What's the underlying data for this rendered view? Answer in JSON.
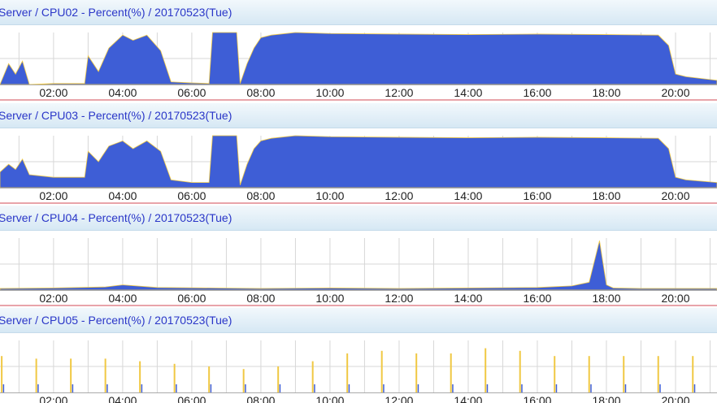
{
  "colors": {
    "cpu": "#3e5ed6",
    "cpu_edge": "#f0c843",
    "grid": "#d7d7d7",
    "baseline": "#d24a55",
    "title_text": "#2a36c8"
  },
  "x_tick_labels": [
    "02:00",
    "04:00",
    "06:00",
    "08:00",
    "10:00",
    "12:00",
    "14:00",
    "16:00",
    "18:00",
    "20:00"
  ],
  "chart_data": [
    {
      "type": "area",
      "title": "Server / CPU02 - Percent(%) / 20170523(Tue)",
      "xlabel": "",
      "ylabel": "",
      "x_unit": "hour of day",
      "xlim": [
        0.45,
        21.2
      ],
      "ylim": [
        0,
        100
      ],
      "grid": true,
      "series": [
        {
          "x": [
            0.45,
            0.7,
            0.9,
            1.1,
            1.3,
            2.0,
            2.9,
            3.0,
            3.3,
            3.6,
            4.0,
            4.3,
            4.7,
            5.1,
            5.4,
            6.0,
            6.5,
            6.6,
            7.3,
            7.4,
            7.6,
            7.8,
            8.0,
            8.3,
            9.0,
            10.0,
            12.0,
            14.0,
            16.0,
            18.0,
            19.5,
            19.8,
            20.0,
            20.3,
            21.2
          ],
          "y": [
            0,
            40,
            20,
            45,
            0,
            2,
            2,
            55,
            25,
            70,
            95,
            85,
            95,
            65,
            5,
            3,
            2,
            100,
            100,
            2,
            40,
            70,
            90,
            95,
            100,
            98,
            97,
            96,
            97,
            96,
            95,
            75,
            20,
            15,
            8
          ]
        }
      ]
    },
    {
      "type": "area",
      "title": "Server / CPU03 - Percent(%) / 20170523(Tue)",
      "xlabel": "",
      "ylabel": "",
      "x_unit": "hour of day",
      "xlim": [
        0.45,
        21.2
      ],
      "ylim": [
        0,
        100
      ],
      "grid": true,
      "series": [
        {
          "x": [
            0.45,
            0.7,
            0.9,
            1.1,
            1.3,
            2.0,
            2.9,
            3.0,
            3.3,
            3.6,
            4.0,
            4.3,
            4.7,
            5.1,
            5.4,
            6.0,
            6.5,
            6.6,
            7.3,
            7.4,
            7.6,
            7.8,
            8.0,
            8.3,
            9.0,
            10.0,
            12.0,
            14.0,
            16.0,
            18.0,
            19.5,
            19.8,
            20.0,
            20.3,
            21.2
          ],
          "y": [
            30,
            45,
            35,
            55,
            25,
            20,
            20,
            70,
            50,
            80,
            90,
            75,
            90,
            70,
            15,
            10,
            10,
            100,
            100,
            5,
            45,
            75,
            90,
            95,
            100,
            98,
            97,
            96,
            97,
            96,
            95,
            75,
            20,
            15,
            10
          ]
        }
      ]
    },
    {
      "type": "area",
      "title": "Server / CPU04 - Percent(%) / 20170523(Tue)",
      "xlabel": "",
      "ylabel": "",
      "x_unit": "hour of day",
      "xlim": [
        0.45,
        21.2
      ],
      "ylim": [
        0,
        100
      ],
      "grid": true,
      "series": [
        {
          "x": [
            0.45,
            2.0,
            3.5,
            4.0,
            5.0,
            8.0,
            10.0,
            12.0,
            14.0,
            16.0,
            17.0,
            17.5,
            17.8,
            18.0,
            18.2,
            19.0,
            21.2
          ],
          "y": [
            3,
            4,
            6,
            10,
            5,
            3,
            4,
            3,
            4,
            5,
            8,
            15,
            95,
            10,
            4,
            3,
            3
          ]
        }
      ]
    },
    {
      "type": "bar",
      "title": "Server / CPU05 - Percent(%) / 20170523(Tue)",
      "xlabel": "",
      "ylabel": "",
      "x_unit": "hour of day",
      "xlim": [
        0.45,
        21.2
      ],
      "ylim": [
        0,
        100
      ],
      "grid": true,
      "series": [
        {
          "x": [
            0.5,
            1.5,
            2.5,
            3.5,
            4.5,
            5.5,
            6.5,
            7.5,
            8.5,
            9.5,
            10.5,
            11.5,
            12.5,
            13.5,
            14.5,
            15.5,
            16.5,
            17.5,
            18.5,
            19.5,
            20.5
          ],
          "y": [
            70,
            65,
            65,
            65,
            60,
            55,
            50,
            45,
            50,
            60,
            75,
            80,
            75,
            75,
            85,
            80,
            70,
            70,
            70,
            70,
            70
          ]
        }
      ]
    }
  ]
}
